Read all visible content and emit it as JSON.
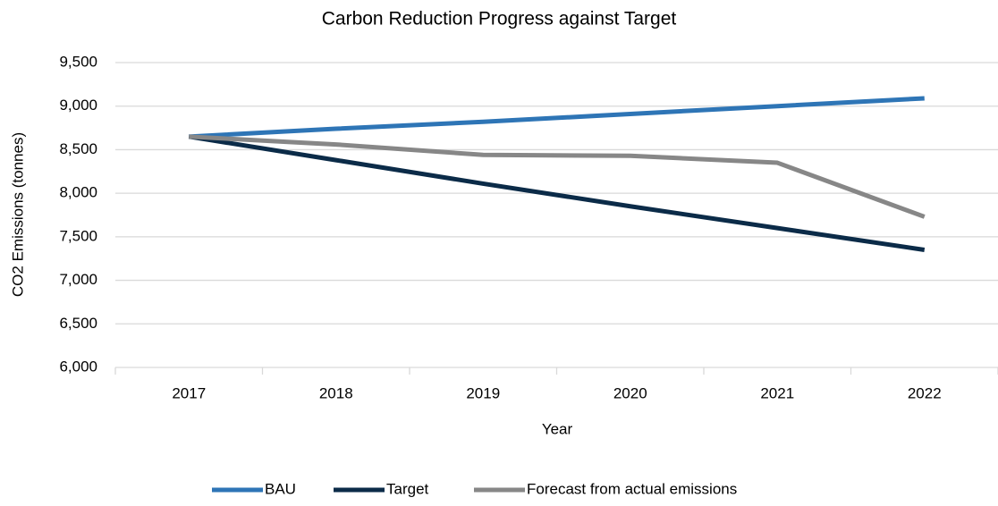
{
  "chart_data": {
    "type": "line",
    "title": "Carbon Reduction Progress against Target",
    "xlabel": "Year",
    "ylabel": "CO2 Emissions (tonnes)",
    "categories": [
      "2017",
      "2018",
      "2019",
      "2020",
      "2021",
      "2022"
    ],
    "series": [
      {
        "name": "BAU",
        "color": "#2e75b6",
        "values": [
          8650,
          8740,
          8820,
          8910,
          9000,
          9090
        ]
      },
      {
        "name": "Target",
        "color": "#0b2b48",
        "values": [
          8650,
          8380,
          8110,
          7850,
          7600,
          7350
        ]
      },
      {
        "name": "Forecast from actual emissions",
        "color": "#878787",
        "values": [
          8650,
          8560,
          8440,
          8430,
          8350,
          7730
        ]
      }
    ],
    "ylim": [
      6000,
      9500
    ],
    "yticks": [
      {
        "value": 6000,
        "label": "6,000"
      },
      {
        "value": 6500,
        "label": "6,500"
      },
      {
        "value": 7000,
        "label": "7,000"
      },
      {
        "value": 7500,
        "label": "7,500"
      },
      {
        "value": 8000,
        "label": "8,000"
      },
      {
        "value": 8500,
        "label": "8,500"
      },
      {
        "value": 9000,
        "label": "9,000"
      },
      {
        "value": 9500,
        "label": "9,500"
      }
    ],
    "grid": true,
    "legend": "bottom"
  }
}
